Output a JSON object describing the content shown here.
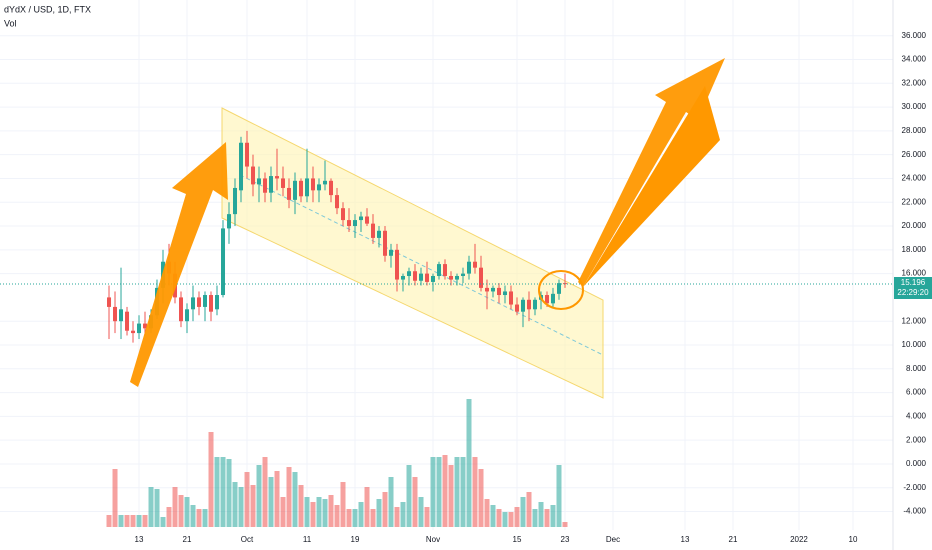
{
  "chart_data": {
    "type": "candlestick",
    "title": "dYdX / USD, 1D, FTX",
    "up_color": "#26a69a",
    "down_color": "#ef5350",
    "grid": true,
    "xlim": [
      -18.17,
      130.67
    ],
    "ylim": [
      -5.3,
      39
    ],
    "xticks": [
      {
        "value": 5,
        "label": "13"
      },
      {
        "value": 13,
        "label": "21"
      },
      {
        "value": 23,
        "label": "Oct"
      },
      {
        "value": 33,
        "label": "11"
      },
      {
        "value": 41,
        "label": "19"
      },
      {
        "value": 54,
        "label": "Nov"
      },
      {
        "value": 68,
        "label": "15"
      },
      {
        "value": 76,
        "label": "23"
      },
      {
        "value": 84,
        "label": "Dec"
      },
      {
        "value": 96,
        "label": "13"
      },
      {
        "value": 104,
        "label": "21"
      },
      {
        "value": 115,
        "label": "2022"
      },
      {
        "value": 124,
        "label": "10"
      }
    ],
    "yticks": [
      {
        "value": 36,
        "label": "36.000"
      },
      {
        "value": 34,
        "label": "34.000"
      },
      {
        "value": 32,
        "label": "32.000"
      },
      {
        "value": 30,
        "label": "30.000"
      },
      {
        "value": 28,
        "label": "28.000"
      },
      {
        "value": 26,
        "label": "26.000"
      },
      {
        "value": 24,
        "label": "24.000"
      },
      {
        "value": 22,
        "label": "22.000"
      },
      {
        "value": 20,
        "label": "20.000"
      },
      {
        "value": 18,
        "label": "18.000"
      },
      {
        "value": 16,
        "label": "16.000"
      },
      {
        "value": 12,
        "label": "12.000"
      },
      {
        "value": 10,
        "label": "10.000"
      },
      {
        "value": 8,
        "label": "8.000"
      },
      {
        "value": 6,
        "label": "6.000"
      },
      {
        "value": 4,
        "label": "4.000"
      },
      {
        "value": 2,
        "label": "2.000"
      },
      {
        "value": 0,
        "label": "0.000"
      },
      {
        "value": -2,
        "label": "-2.000"
      },
      {
        "value": -4,
        "label": "-4.000"
      }
    ],
    "open": [
      14.0,
      13.2,
      12.0,
      12.8,
      11.2,
      11.0,
      11.8,
      11.4,
      12.5,
      14.8,
      17.0,
      16.0,
      14.0,
      12.0,
      13.0,
      14.0,
      13.2,
      14.2,
      13.0,
      14.2,
      19.8,
      21.0,
      23.0,
      27.0,
      25.0,
      23.5,
      24.0,
      22.8,
      24.2,
      24.0,
      23.2,
      22.2,
      23.8,
      22.5,
      24.0,
      23.0,
      23.5,
      23.8,
      22.6,
      21.5,
      20.5,
      20.0,
      20.5,
      20.8,
      20.2,
      19.0,
      19.6,
      17.5,
      18.0,
      15.5,
      15.8,
      16.2,
      15.4,
      16.0,
      15.3,
      15.8,
      16.8,
      15.8,
      15.5,
      15.8,
      16.0,
      17.0,
      16.5,
      14.8,
      14.5,
      14.8,
      14.2,
      14.5,
      13.4,
      12.8,
      13.8,
      13.0,
      13.8,
      14.2,
      13.5,
      14.3,
      15.2
    ],
    "high": [
      15.0,
      14.5,
      16.5,
      13.2,
      12.0,
      12.5,
      12.8,
      13.0,
      15.5,
      18.0,
      18.5,
      17.0,
      14.5,
      13.5,
      15.0,
      14.5,
      14.5,
      14.5,
      15.0,
      20.5,
      22.0,
      24.0,
      27.5,
      28.0,
      26.0,
      25.0,
      24.5,
      25.0,
      26.5,
      25.0,
      24.0,
      24.5,
      24.0,
      26.5,
      25.0,
      24.0,
      25.5,
      24.0,
      23.2,
      22.0,
      21.5,
      21.0,
      21.2,
      21.5,
      21.0,
      20.0,
      20.0,
      18.5,
      18.5,
      16.0,
      16.5,
      16.8,
      16.5,
      17.0,
      16.0,
      17.0,
      17.2,
      16.2,
      16.0,
      16.5,
      17.5,
      18.5,
      17.5,
      15.5,
      15.0,
      15.2,
      15.0,
      15.0,
      14.0,
      14.0,
      14.5,
      14.0,
      14.5,
      14.5,
      14.8,
      15.5,
      16.0
    ],
    "low": [
      10.5,
      11.0,
      10.5,
      10.8,
      10.2,
      10.5,
      10.8,
      11.0,
      12.2,
      13.5,
      15.0,
      13.5,
      11.5,
      11.0,
      12.0,
      12.5,
      12.0,
      12.0,
      12.5,
      14.0,
      18.5,
      20.0,
      22.0,
      24.0,
      22.5,
      22.0,
      22.0,
      22.0,
      23.0,
      22.5,
      21.5,
      21.0,
      22.0,
      22.0,
      22.0,
      22.0,
      23.0,
      22.0,
      21.0,
      20.0,
      19.5,
      19.0,
      19.5,
      20.0,
      18.5,
      18.2,
      17.0,
      16.5,
      14.5,
      14.5,
      15.0,
      15.0,
      15.0,
      15.0,
      14.5,
      15.5,
      15.5,
      15.0,
      15.0,
      15.2,
      15.5,
      16.0,
      14.5,
      13.0,
      14.0,
      13.5,
      13.5,
      13.0,
      12.5,
      11.5,
      12.0,
      12.5,
      13.0,
      13.2,
      13.2,
      13.8,
      14.8
    ],
    "close": [
      13.2,
      12.0,
      13.0,
      11.2,
      11.0,
      11.8,
      11.4,
      12.5,
      14.8,
      17.0,
      16.0,
      14.0,
      12.0,
      13.0,
      14.0,
      13.2,
      14.2,
      12.8,
      14.2,
      19.8,
      21.0,
      23.2,
      27.0,
      25.0,
      23.5,
      24.0,
      22.8,
      24.2,
      24.0,
      23.2,
      22.2,
      23.8,
      22.5,
      24.0,
      23.0,
      23.5,
      23.8,
      22.6,
      21.5,
      20.5,
      20.0,
      20.5,
      20.8,
      20.2,
      19.0,
      19.6,
      17.5,
      18.0,
      15.5,
      15.8,
      16.2,
      15.4,
      16.0,
      15.3,
      15.8,
      16.8,
      15.8,
      15.5,
      15.8,
      16.0,
      17.0,
      16.5,
      14.8,
      14.5,
      14.8,
      14.2,
      14.5,
      13.4,
      12.8,
      13.8,
      13.0,
      13.8,
      14.2,
      13.5,
      14.3,
      15.2,
      15.196
    ],
    "volume": {
      "name": "Vol",
      "values": [
        12,
        58,
        12,
        12,
        12,
        12,
        12,
        40,
        38,
        10,
        20,
        40,
        32,
        30,
        22,
        18,
        18,
        95,
        70,
        70,
        68,
        45,
        40,
        55,
        42,
        62,
        70,
        50,
        56,
        30,
        60,
        55,
        42,
        30,
        25,
        30,
        28,
        32,
        22,
        45,
        18,
        18,
        25,
        40,
        18,
        28,
        35,
        50,
        20,
        25,
        62,
        50,
        30,
        20,
        70,
        70,
        72,
        62,
        70,
        70,
        128,
        70,
        58,
        28,
        22,
        18,
        15,
        15,
        20,
        30,
        35,
        18,
        25,
        18,
        22,
        62,
        5
      ]
    },
    "last_price": 15.196,
    "countdown": "22:29:20"
  }
}
